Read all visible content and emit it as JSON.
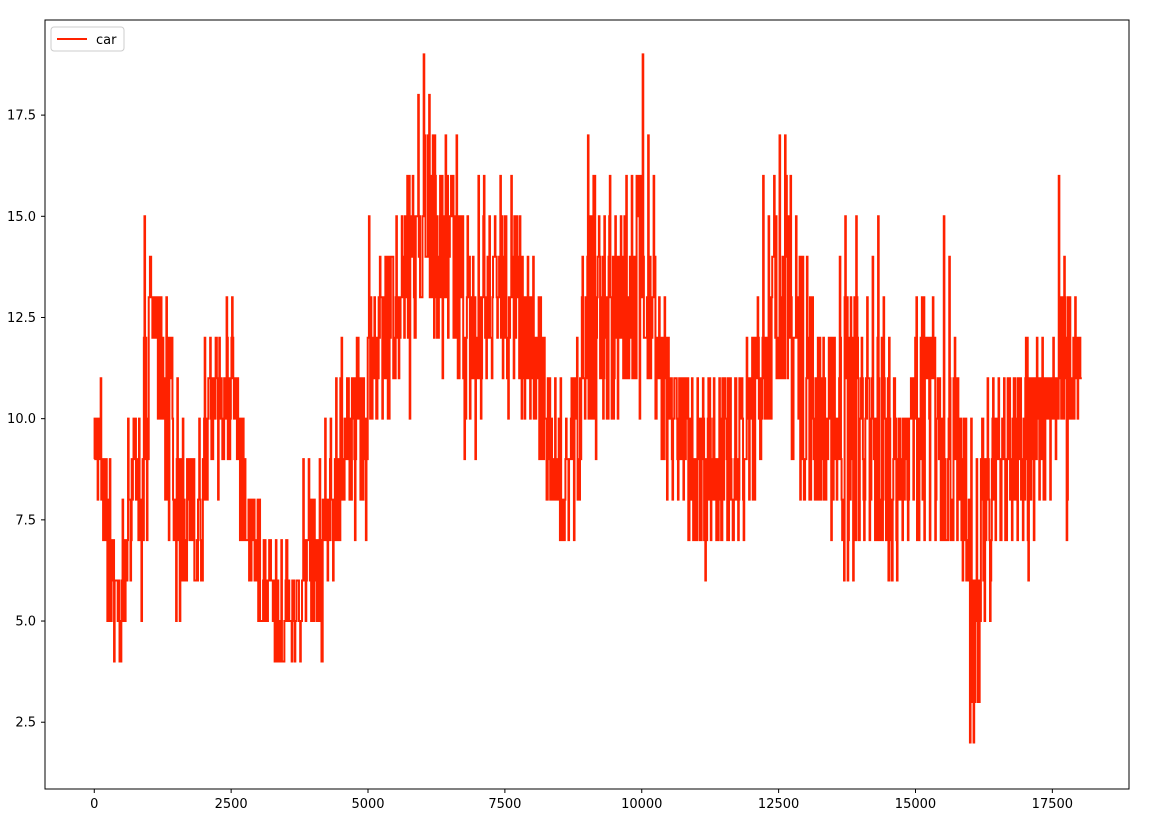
{
  "chart_data": {
    "type": "line",
    "title": "",
    "xlabel": "",
    "ylabel": "",
    "xlim": [
      -900,
      18900
    ],
    "ylim": [
      0.85,
      19.85
    ],
    "xticks": [
      0,
      2500,
      5000,
      7500,
      10000,
      12500,
      15000,
      17500
    ],
    "xtick_labels": [
      "0",
      "2500",
      "5000",
      "7500",
      "10000",
      "12500",
      "15000",
      "17500"
    ],
    "yticks": [
      2.5,
      5.0,
      7.5,
      10.0,
      12.5,
      15.0,
      17.5
    ],
    "ytick_labels": [
      "2.5",
      "5.0",
      "7.5",
      "10.0",
      "12.5",
      "15.0",
      "17.5"
    ],
    "grid": false,
    "legend": {
      "position": "top-left",
      "entries": [
        "car"
      ]
    },
    "series": [
      {
        "name": "car",
        "color": "#ff2200",
        "x": [
          0,
          100,
          200,
          300,
          400,
          500,
          600,
          700,
          800,
          900,
          1000,
          1100,
          1200,
          1300,
          1400,
          1500,
          1600,
          1700,
          1800,
          1900,
          2000,
          2100,
          2200,
          2300,
          2400,
          2500,
          2600,
          2700,
          2800,
          2900,
          3000,
          3100,
          3200,
          3300,
          3400,
          3500,
          3600,
          3700,
          3800,
          3900,
          4000,
          4100,
          4200,
          4300,
          4400,
          4500,
          4600,
          4700,
          4800,
          4900,
          5000,
          5100,
          5200,
          5300,
          5400,
          5500,
          5600,
          5700,
          5800,
          5900,
          6000,
          6100,
          6200,
          6300,
          6400,
          6500,
          6600,
          6700,
          6800,
          6900,
          7000,
          7100,
          7200,
          7300,
          7400,
          7500,
          7600,
          7700,
          7800,
          7900,
          8000,
          8100,
          8200,
          8300,
          8400,
          8500,
          8600,
          8700,
          8800,
          8900,
          9000,
          9100,
          9200,
          9300,
          9400,
          9500,
          9600,
          9700,
          9800,
          9900,
          10000,
          10100,
          10200,
          10300,
          10400,
          10500,
          10600,
          10700,
          10800,
          10900,
          11000,
          11100,
          11200,
          11300,
          11400,
          11500,
          11600,
          11700,
          11800,
          11900,
          12000,
          12100,
          12200,
          12300,
          12400,
          12500,
          12600,
          12700,
          12800,
          12900,
          13000,
          13100,
          13200,
          13300,
          13400,
          13500,
          13600,
          13700,
          13800,
          13900,
          14000,
          14100,
          14200,
          14300,
          14400,
          14500,
          14600,
          14700,
          14800,
          14900,
          15000,
          15100,
          15200,
          15300,
          15400,
          15500,
          15600,
          15700,
          15800,
          15900,
          16000,
          16100,
          16200,
          16300,
          16400,
          16500,
          16600,
          16700,
          16800,
          16900,
          17000,
          17100,
          17200,
          17300,
          17400,
          17500,
          17600,
          17700,
          17800,
          17900,
          18000
        ],
        "y": [
          10,
          8,
          7,
          6,
          5,
          6,
          8,
          9,
          8,
          9,
          13,
          12,
          11,
          10,
          9,
          8,
          7,
          8,
          7,
          7,
          9,
          10,
          11,
          10,
          10,
          11,
          9,
          8,
          7,
          7,
          6,
          6,
          6,
          5,
          5,
          6,
          5,
          5,
          6,
          6,
          6,
          6,
          7,
          8,
          8,
          9,
          10,
          10,
          10,
          10,
          11,
          11,
          12,
          12,
          13,
          13,
          14,
          13,
          14,
          15,
          16,
          15,
          14,
          14,
          14,
          14,
          13,
          13,
          12,
          12,
          12,
          13,
          13,
          14,
          14,
          13,
          13,
          13,
          12,
          12,
          11,
          11,
          10,
          9,
          9,
          8,
          9,
          9,
          10,
          12,
          12,
          13,
          13,
          12,
          12,
          12,
          13,
          13,
          13,
          14,
          14,
          13,
          12,
          11,
          10,
          10,
          10,
          10,
          9,
          9,
          9,
          9,
          9,
          9,
          9,
          9,
          9,
          9,
          9,
          10,
          10,
          11,
          12,
          12,
          13,
          13,
          13,
          12,
          12,
          11,
          11,
          10,
          10,
          10,
          10,
          10,
          10,
          10,
          10,
          10,
          10,
          9,
          9,
          9,
          9,
          9,
          9,
          9,
          9,
          10,
          10,
          11,
          11,
          10,
          10,
          9,
          9,
          9,
          8,
          7,
          3,
          6,
          8,
          8,
          9,
          9,
          9,
          9,
          9,
          9,
          9,
          9,
          10,
          10,
          11,
          11,
          11,
          10,
          11,
          11,
          11
        ],
        "low": [
          8,
          7,
          5,
          4,
          4,
          5,
          6,
          8,
          5,
          7,
          12,
          10,
          10,
          7,
          7,
          5,
          6,
          7,
          6,
          6,
          8,
          9,
          8,
          9,
          9,
          10,
          7,
          7,
          6,
          6,
          5,
          5,
          5,
          4,
          4,
          5,
          4,
          4,
          5,
          5,
          5,
          4,
          6,
          6,
          7,
          8,
          8,
          7,
          8,
          7,
          10,
          10,
          10,
          10,
          11,
          11,
          12,
          10,
          12,
          13,
          14,
          13,
          12,
          11,
          12,
          12,
          11,
          9,
          10,
          9,
          10,
          11,
          11,
          12,
          11,
          10,
          11,
          11,
          10,
          10,
          10,
          9,
          8,
          8,
          8,
          7,
          7,
          7,
          8,
          10,
          10,
          9,
          11,
          10,
          10,
          10,
          11,
          11,
          11,
          10,
          12,
          11,
          10,
          9,
          8,
          8,
          8,
          8,
          7,
          7,
          7,
          6,
          7,
          7,
          7,
          7,
          7,
          7,
          7,
          8,
          8,
          9,
          10,
          10,
          11,
          11,
          11,
          9,
          10,
          8,
          8,
          8,
          8,
          8,
          7,
          8,
          7,
          6,
          6,
          7,
          7,
          7,
          7,
          7,
          7,
          6,
          6,
          7,
          7,
          8,
          7,
          7,
          7,
          7,
          7,
          7,
          7,
          7,
          6,
          6,
          2,
          3,
          5,
          5,
          7,
          7,
          7,
          7,
          7,
          7,
          6,
          7,
          8,
          8,
          8,
          9,
          10,
          7,
          10,
          10,
          11
        ],
        "high": [
          10,
          11,
          9,
          7,
          6,
          8,
          10,
          10,
          10,
          15,
          14,
          13,
          13,
          13,
          12,
          11,
          10,
          9,
          9,
          10,
          12,
          12,
          12,
          11,
          13,
          13,
          11,
          10,
          8,
          8,
          8,
          7,
          7,
          7,
          7,
          7,
          6,
          6,
          9,
          9,
          8,
          9,
          10,
          10,
          11,
          12,
          11,
          11,
          12,
          11,
          15,
          13,
          14,
          14,
          14,
          15,
          15,
          16,
          16,
          18,
          19,
          18,
          17,
          16,
          17,
          16,
          17,
          15,
          15,
          14,
          16,
          16,
          15,
          15,
          16,
          15,
          16,
          15,
          14,
          14,
          14,
          13,
          12,
          11,
          11,
          11,
          10,
          11,
          12,
          14,
          17,
          16,
          15,
          15,
          16,
          15,
          15,
          16,
          16,
          16,
          19,
          17,
          16,
          13,
          13,
          11,
          11,
          11,
          11,
          11,
          11,
          11,
          11,
          11,
          11,
          11,
          11,
          11,
          11,
          12,
          12,
          13,
          16,
          15,
          16,
          17,
          17,
          16,
          15,
          14,
          14,
          13,
          12,
          12,
          12,
          12,
          14,
          15,
          13,
          15,
          12,
          13,
          14,
          15,
          13,
          12,
          11,
          10,
          10,
          11,
          13,
          13,
          12,
          13,
          11,
          15,
          14,
          12,
          10,
          10,
          10,
          9,
          10,
          11,
          11,
          11,
          11,
          11,
          11,
          11,
          12,
          11,
          12,
          12,
          11,
          12,
          16,
          14,
          13,
          13,
          12
        ]
      }
    ]
  }
}
